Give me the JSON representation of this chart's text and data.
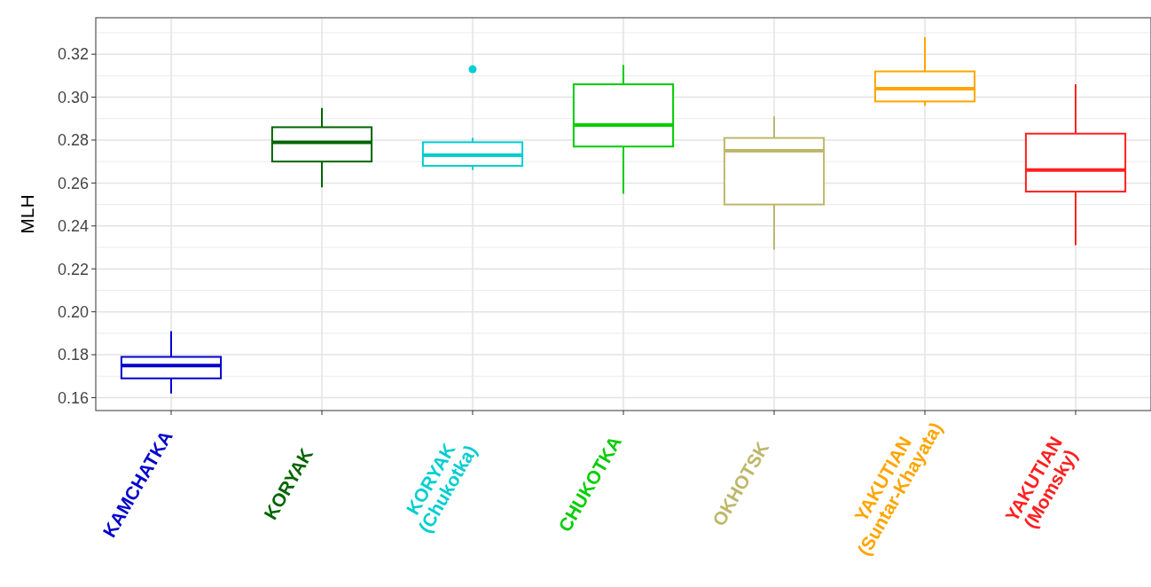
{
  "chart_data": {
    "type": "box",
    "ylabel": "MLH",
    "categories": [
      "KAMCHATKA",
      "KORYAK",
      "KORYAK\n(Chukotka)",
      "CHUKOTKA",
      "OKHOTSK",
      "YAKUTIAN\n(Suntar-Khayata)",
      "YAKUTIAN\n(Momsky)"
    ],
    "colors": [
      "#0000cd",
      "#006400",
      "#00ced1",
      "#00cd00",
      "#bdb76b",
      "#ffa500",
      "#ff2020"
    ],
    "boxes": [
      {
        "low": 0.162,
        "q1": 0.169,
        "median": 0.175,
        "q3": 0.179,
        "high": 0.191
      },
      {
        "low": 0.258,
        "q1": 0.27,
        "median": 0.279,
        "q3": 0.286,
        "high": 0.295
      },
      {
        "low": 0.266,
        "q1": 0.268,
        "median": 0.273,
        "q3": 0.279,
        "high": 0.281,
        "outliers": [
          0.313
        ]
      },
      {
        "low": 0.255,
        "q1": 0.277,
        "median": 0.287,
        "q3": 0.306,
        "high": 0.315
      },
      {
        "low": 0.229,
        "q1": 0.25,
        "median": 0.275,
        "q3": 0.281,
        "high": 0.291
      },
      {
        "low": 0.296,
        "q1": 0.298,
        "median": 0.304,
        "q3": 0.312,
        "high": 0.328
      },
      {
        "low": 0.231,
        "q1": 0.256,
        "median": 0.266,
        "q3": 0.283,
        "high": 0.306
      }
    ],
    "ylim": [
      0.154,
      0.337
    ],
    "yticks": [
      0.16,
      0.18,
      {
        "value": 0.2,
        "label": "0.20"
      },
      0.22,
      0.24,
      0.26,
      0.28,
      {
        "value": 0.3,
        "label": "0.30"
      },
      0.32
    ],
    "grid": true
  }
}
